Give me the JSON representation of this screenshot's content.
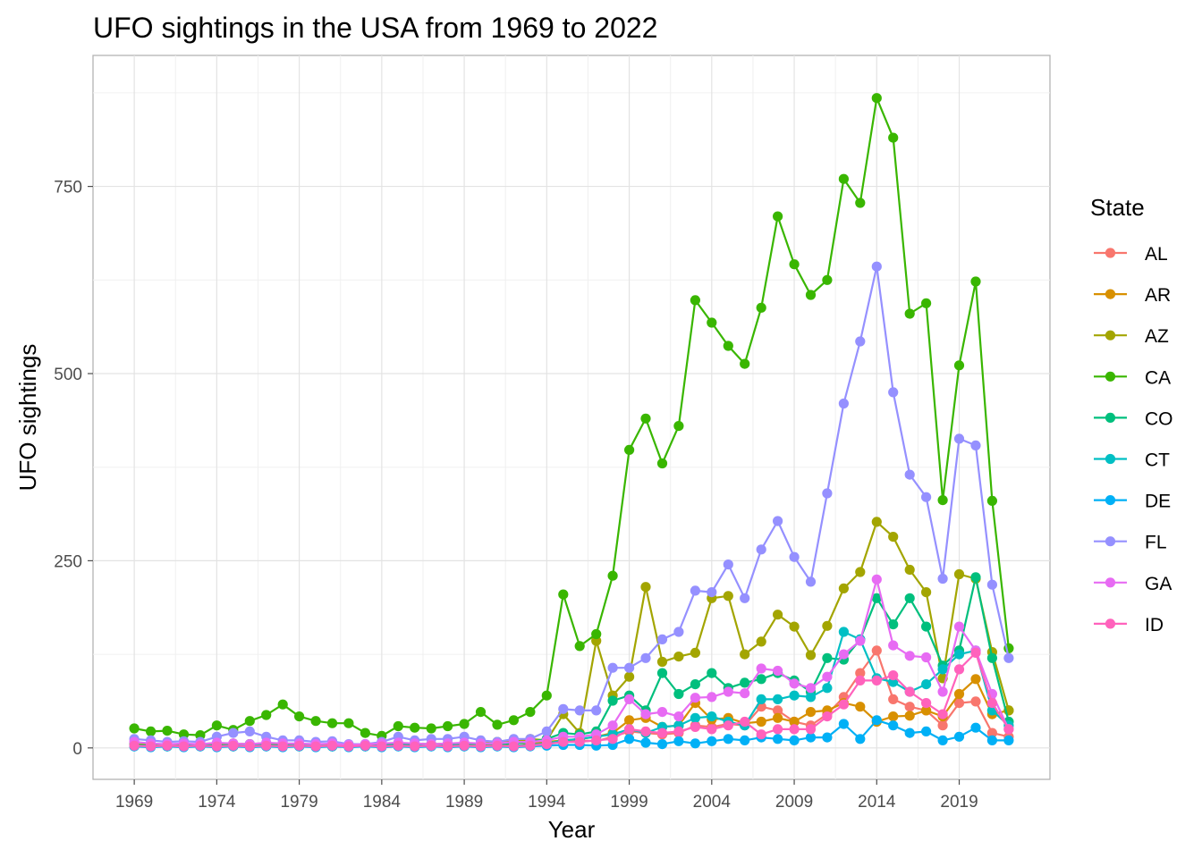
{
  "chart_data": {
    "type": "line",
    "title": "UFO sightings in the USA from 1969 to 2022",
    "xlabel": "Year",
    "ylabel": "UFO sightings",
    "xlim": [
      1966.5,
      2024.5
    ],
    "ylim": [
      -42,
      925
    ],
    "x_ticks": [
      1969,
      1974,
      1979,
      1984,
      1989,
      1994,
      1999,
      2004,
      2009,
      2014,
      2019
    ],
    "y_ticks": [
      0,
      250,
      500,
      750
    ],
    "grid": true,
    "markers": true,
    "legend_title": "State",
    "legend_position": "right",
    "x": [
      1969,
      1970,
      1971,
      1972,
      1973,
      1974,
      1975,
      1976,
      1977,
      1978,
      1979,
      1980,
      1981,
      1982,
      1983,
      1984,
      1985,
      1986,
      1987,
      1988,
      1989,
      1990,
      1991,
      1992,
      1993,
      1994,
      1995,
      1996,
      1997,
      1998,
      1999,
      2000,
      2001,
      2002,
      2003,
      2004,
      2005,
      2006,
      2007,
      2008,
      2009,
      2010,
      2011,
      2012,
      2013,
      2014,
      2015,
      2016,
      2017,
      2018,
      2019,
      2020,
      2021,
      2022
    ],
    "series": [
      {
        "name": "AL",
        "color": "#F8766D",
        "values": [
          3,
          2,
          3,
          2,
          2,
          3,
          2,
          3,
          2,
          4,
          3,
          2,
          2,
          3,
          3,
          2,
          3,
          2,
          3,
          2,
          3,
          2,
          3,
          2,
          4,
          6,
          8,
          10,
          9,
          15,
          22,
          20,
          18,
          20,
          30,
          28,
          32,
          30,
          55,
          50,
          35,
          30,
          45,
          68,
          100,
          130,
          65,
          55,
          50,
          30,
          60,
          62,
          20,
          15
        ]
      },
      {
        "name": "AR",
        "color": "#D89000",
        "values": [
          4,
          3,
          2,
          3,
          4,
          3,
          2,
          3,
          4,
          3,
          2,
          3,
          2,
          3,
          2,
          3,
          3,
          4,
          3,
          4,
          3,
          3,
          5,
          2,
          6,
          8,
          10,
          12,
          15,
          20,
          37,
          40,
          28,
          30,
          60,
          38,
          40,
          33,
          35,
          40,
          35,
          48,
          50,
          60,
          55,
          35,
          42,
          43,
          50,
          42,
          72,
          92,
          45,
          50
        ]
      },
      {
        "name": "AZ",
        "color": "#A3A500",
        "values": [
          5,
          4,
          4,
          5,
          4,
          5,
          6,
          5,
          4,
          6,
          5,
          4,
          5,
          4,
          5,
          4,
          5,
          6,
          5,
          6,
          5,
          6,
          8,
          8,
          12,
          10,
          45,
          20,
          143,
          70,
          95,
          215,
          115,
          122,
          127,
          200,
          203,
          125,
          142,
          178,
          162,
          124,
          163,
          213,
          235,
          302,
          282,
          238,
          208,
          93,
          232,
          226,
          128,
          50
        ]
      },
      {
        "name": "CA",
        "color": "#39B600",
        "values": [
          26,
          22,
          23,
          18,
          17,
          30,
          24,
          36,
          44,
          58,
          42,
          36,
          33,
          33,
          20,
          16,
          29,
          27,
          26,
          29,
          32,
          48,
          31,
          37,
          48,
          70,
          205,
          136,
          152,
          230,
          398,
          440,
          380,
          430,
          598,
          568,
          537,
          513,
          588,
          710,
          646,
          605,
          625,
          760,
          728,
          868,
          815,
          580,
          594,
          331,
          511,
          623,
          330,
          133
        ]
      },
      {
        "name": "CO",
        "color": "#00BF7D",
        "values": [
          4,
          3,
          2,
          3,
          4,
          3,
          4,
          5,
          4,
          3,
          4,
          3,
          2,
          3,
          3,
          4,
          5,
          4,
          5,
          4,
          5,
          6,
          5,
          6,
          8,
          12,
          20,
          18,
          22,
          63,
          70,
          50,
          100,
          72,
          85,
          100,
          80,
          87,
          92,
          100,
          90,
          75,
          120,
          118,
          145,
          200,
          165,
          200,
          162,
          110,
          130,
          228,
          120,
          35
        ]
      },
      {
        "name": "CT",
        "color": "#00BFC4",
        "values": [
          2,
          3,
          2,
          3,
          2,
          3,
          2,
          3,
          2,
          3,
          2,
          3,
          2,
          3,
          2,
          3,
          2,
          3,
          2,
          3,
          2,
          3,
          2,
          3,
          4,
          6,
          10,
          12,
          15,
          18,
          25,
          20,
          28,
          30,
          40,
          42,
          35,
          30,
          65,
          65,
          70,
          68,
          80,
          155,
          145,
          93,
          88,
          75,
          85,
          105,
          125,
          130,
          50,
          30
        ]
      },
      {
        "name": "DE",
        "color": "#00B0F6",
        "values": [
          2,
          1,
          2,
          1,
          2,
          1,
          2,
          1,
          2,
          1,
          2,
          1,
          2,
          1,
          2,
          1,
          2,
          1,
          2,
          1,
          2,
          1,
          2,
          1,
          2,
          3,
          4,
          4,
          3,
          4,
          12,
          7,
          5,
          9,
          6,
          9,
          12,
          10,
          14,
          12,
          10,
          14,
          14,
          32,
          12,
          37,
          30,
          20,
          22,
          10,
          15,
          27,
          10,
          10
        ]
      },
      {
        "name": "FL",
        "color": "#9590FF",
        "values": [
          12,
          10,
          8,
          9,
          8,
          15,
          20,
          22,
          15,
          10,
          10,
          8,
          9,
          5,
          5,
          8,
          15,
          10,
          12,
          12,
          15,
          10,
          8,
          12,
          12,
          22,
          52,
          50,
          50,
          107,
          107,
          120,
          145,
          155,
          210,
          208,
          245,
          200,
          265,
          303,
          255,
          222,
          340,
          460,
          543,
          643,
          475,
          365,
          335,
          226,
          413,
          404,
          218,
          120
        ]
      },
      {
        "name": "GA",
        "color": "#E76BF3",
        "values": [
          8,
          6,
          5,
          6,
          5,
          7,
          6,
          5,
          7,
          6,
          6,
          5,
          6,
          4,
          5,
          6,
          7,
          6,
          5,
          6,
          7,
          6,
          6,
          8,
          8,
          10,
          15,
          15,
          18,
          30,
          65,
          45,
          48,
          42,
          67,
          68,
          75,
          73,
          106,
          103,
          86,
          80,
          95,
          125,
          143,
          225,
          137,
          123,
          121,
          75,
          162,
          130,
          72,
          25
        ]
      },
      {
        "name": "ID",
        "color": "#FF62BC",
        "values": [
          3,
          2,
          3,
          2,
          3,
          2,
          3,
          2,
          3,
          2,
          3,
          2,
          3,
          2,
          3,
          2,
          3,
          2,
          3,
          2,
          3,
          2,
          3,
          2,
          3,
          5,
          8,
          8,
          10,
          12,
          25,
          22,
          20,
          22,
          28,
          25,
          30,
          35,
          18,
          25,
          25,
          25,
          42,
          58,
          90,
          90,
          97,
          75,
          60,
          45,
          105,
          127,
          60,
          25
        ]
      }
    ]
  }
}
